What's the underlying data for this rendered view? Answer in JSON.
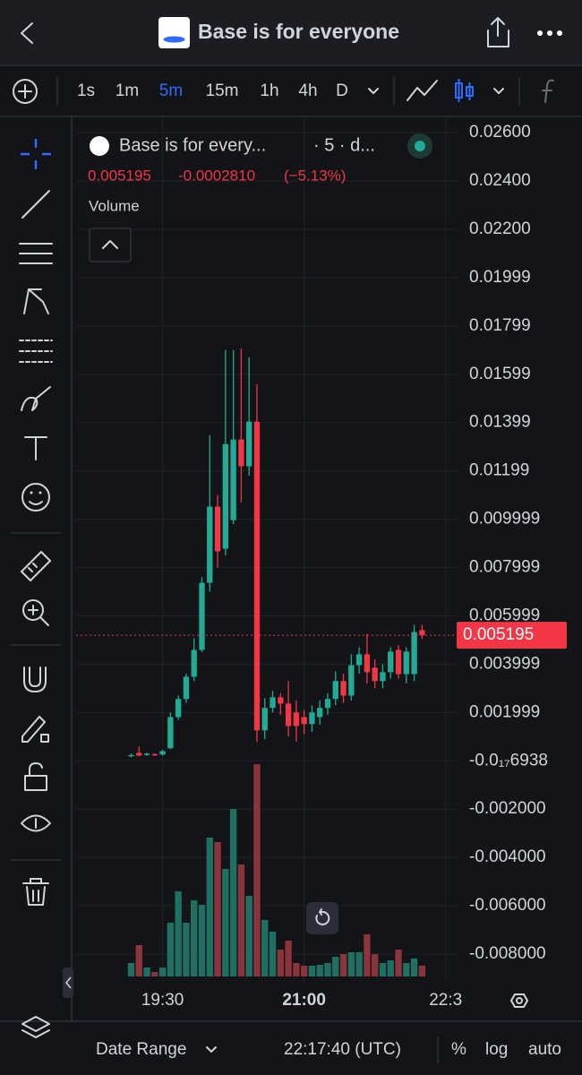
{
  "header": {
    "title": "Base is for everyone"
  },
  "toolbar": {
    "intervals": [
      "1s",
      "1m",
      "5m",
      "15m",
      "1h",
      "4h",
      "D"
    ]
  },
  "legend": {
    "name": "Base is for every...",
    "interval": "· 5 · d...",
    "last": "0.005195",
    "change": "-0.0002810",
    "change_pct": "(−5.13%)",
    "volume": "Volume"
  },
  "footer": {
    "date_range": "Date Range",
    "clock": "22:17:40 (UTC)",
    "percent": "%",
    "log": "log",
    "auto": "auto"
  },
  "chart_data": {
    "type": "candlestick",
    "x": [
      "19:10",
      "19:15",
      "19:20",
      "19:25",
      "19:30",
      "19:35",
      "19:40",
      "19:45",
      "19:50",
      "19:55",
      "20:00",
      "20:05",
      "20:10",
      "20:15",
      "20:20",
      "20:25",
      "20:30",
      "20:35",
      "20:40",
      "20:45",
      "20:50",
      "20:55",
      "21:00",
      "21:05",
      "21:10",
      "21:15",
      "21:20",
      "21:25",
      "21:30",
      "21:35",
      "21:40",
      "21:45",
      "21:50",
      "21:55",
      "22:00",
      "22:05",
      "22:10",
      "22:15"
    ],
    "open": [
      0.0002,
      0.00033,
      0.00025,
      0.00028,
      0.00026,
      0.00052,
      0.00181,
      0.00256,
      0.00348,
      0.00459,
      0.00737,
      0.01052,
      0.00878,
      0.00996,
      0.0133,
      0.01219,
      0.01404,
      0.00126,
      0.00219,
      0.00263,
      0.00237,
      0.002,
      0.00181,
      0.00152,
      0.00181,
      0.00219,
      0.00256,
      0.0033,
      0.0027,
      0.00396,
      0.00441,
      0.00385,
      0.0033,
      0.00367,
      0.00459,
      0.00359,
      0.00359,
      0.00541
    ],
    "high": [
      0.0003,
      0.00059,
      0.00033,
      0.0003,
      0.00045,
      0.002,
      0.0027,
      0.0036,
      0.00507,
      0.0076,
      0.01348,
      0.011,
      0.017,
      0.017,
      0.01707,
      0.0167,
      0.01559,
      0.0026,
      0.0029,
      0.0028,
      0.0033,
      0.0025,
      0.0021,
      0.0023,
      0.0025,
      0.0028,
      0.0037,
      0.0036,
      0.00441,
      0.0047,
      0.00526,
      0.0042,
      0.004,
      0.0047,
      0.0048,
      0.0047,
      0.00563,
      0.00563
    ],
    "low": [
      0.00015,
      0.00018,
      0.0002,
      0.0002,
      0.00022,
      0.00048,
      0.0017,
      0.0024,
      0.0033,
      0.0045,
      0.007,
      0.008,
      0.0085,
      0.0098,
      0.0107,
      0.0118,
      0.00078,
      0.0009,
      0.002,
      0.0019,
      0.001,
      0.0008,
      0.0011,
      0.0012,
      0.0015,
      0.0019,
      0.0023,
      0.0024,
      0.0025,
      0.0036,
      0.0032,
      0.003,
      0.003,
      0.0034,
      0.0034,
      0.0032,
      0.0033,
      0.00505
    ],
    "close": [
      0.00024,
      0.00022,
      0.0003,
      0.00025,
      0.0004,
      0.00181,
      0.00256,
      0.00348,
      0.00459,
      0.00737,
      0.01052,
      0.00867,
      0.01311,
      0.0133,
      0.01219,
      0.01404,
      0.00126,
      0.00219,
      0.00263,
      0.00237,
      0.00144,
      0.00144,
      0.00152,
      0.002,
      0.00219,
      0.00256,
      0.0033,
      0.0027,
      0.00396,
      0.00441,
      0.00367,
      0.0033,
      0.00367,
      0.00452,
      0.00359,
      0.00452,
      0.00533,
      0.005195
    ],
    "volume": [
      15,
      35,
      10,
      5,
      10,
      60,
      95,
      60,
      85,
      80,
      155,
      150,
      120,
      187,
      125,
      90,
      237,
      63,
      50,
      30,
      40,
      15,
      12,
      12,
      13,
      15,
      22,
      25,
      27,
      27,
      47,
      25,
      15,
      18,
      30,
      15,
      20,
      12
    ],
    "up_color": "#22ab94",
    "down_color": "#f23645",
    "volume_up_color": "#1f6f63",
    "volume_down_color": "#8a343c",
    "last_price": 0.005195,
    "ylim": [
      -0.009,
      0.0263
    ],
    "yticks": [
      {
        "value": 0.026,
        "label": "0.02600"
      },
      {
        "value": 0.024,
        "label": "0.02400"
      },
      {
        "value": 0.022,
        "label": "0.02200"
      },
      {
        "value": 0.02,
        "label": "0.01999"
      },
      {
        "value": 0.018,
        "label": "0.01799"
      },
      {
        "value": 0.016,
        "label": "0.01599"
      },
      {
        "value": 0.014,
        "label": "0.01399"
      },
      {
        "value": 0.012,
        "label": "0.01199"
      },
      {
        "value": 0.01,
        "label": "0.009999"
      },
      {
        "value": 0.008,
        "label": "0.007999"
      },
      {
        "value": 0.006,
        "label": "0.005999"
      },
      {
        "value": 0.004,
        "label": "0.003999"
      },
      {
        "value": 0.002,
        "label": "0.001999"
      },
      {
        "value": -6.938e-18,
        "label": "-0.0₁₇6938"
      },
      {
        "value": -0.002,
        "label": "-0.002000"
      },
      {
        "value": -0.004,
        "label": "-0.004000"
      },
      {
        "value": -0.006,
        "label": "-0.006000"
      },
      {
        "value": -0.008,
        "label": "-0.008000"
      }
    ],
    "xlim": [
      "18:35",
      "22:37"
    ],
    "xticks": [
      "19:30",
      "21:00",
      {
        "value": "22:30",
        "label": "22:3"
      }
    ],
    "grid": true
  }
}
